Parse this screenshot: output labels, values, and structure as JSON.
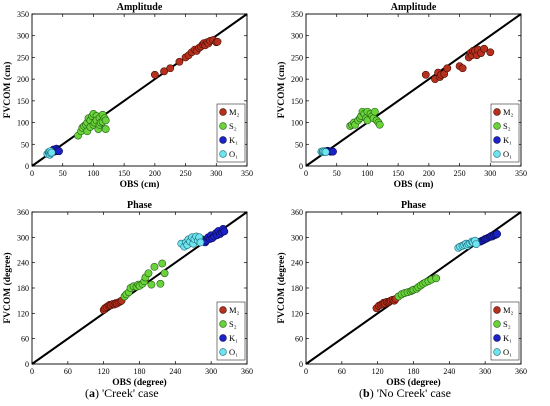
{
  "captions": [
    {
      "label": "a",
      "text": " 'Creek' case"
    },
    {
      "label": "b",
      "text": " 'No Creek' case"
    }
  ],
  "styles": {
    "M2": {
      "fill": "#b5311e",
      "stroke": "#4a0d05"
    },
    "S2": {
      "fill": "#6ad23a",
      "stroke": "#1f5e12"
    },
    "K1": {
      "fill": "#1c22c8",
      "stroke": "#070a50"
    },
    "O1": {
      "fill": "#6fe3ee",
      "stroke": "#1a6a78"
    }
  },
  "chart_data": [
    {
      "panel": "amplitude-creek",
      "type": "scatter",
      "title": "Amplitude",
      "xlabel": "OBS (cm)",
      "ylabel": "FVCOM (cm)",
      "xlim": [
        0,
        350
      ],
      "ylim": [
        0,
        350
      ],
      "xticks": [
        0,
        50,
        100,
        150,
        200,
        250,
        300,
        350
      ],
      "yticks": [
        0,
        50,
        100,
        150,
        200,
        250,
        300,
        350
      ],
      "legend": "right",
      "series": [
        {
          "name": "M₂",
          "key": "M2",
          "points": [
            [
              200,
              210
            ],
            [
              215,
              218
            ],
            [
              225,
              225
            ],
            [
              240,
              240
            ],
            [
              250,
              250
            ],
            [
              255,
              255
            ],
            [
              260,
              262
            ],
            [
              265,
              268
            ],
            [
              268,
              265
            ],
            [
              272,
              272
            ],
            [
              275,
              275
            ],
            [
              278,
              280
            ],
            [
              280,
              283
            ],
            [
              282,
              278
            ],
            [
              285,
              285
            ],
            [
              287,
              282
            ],
            [
              290,
              288
            ],
            [
              295,
              290
            ],
            [
              300,
              285
            ],
            [
              302,
              286
            ]
          ]
        },
        {
          "name": "S₂",
          "key": "S2",
          "points": [
            [
              75,
              70
            ],
            [
              80,
              80
            ],
            [
              82,
              88
            ],
            [
              85,
              92
            ],
            [
              88,
              95
            ],
            [
              90,
              100
            ],
            [
              90,
              80
            ],
            [
              92,
              110
            ],
            [
              95,
              105
            ],
            [
              95,
              90
            ],
            [
              98,
              115
            ],
            [
              100,
              95
            ],
            [
              100,
              120
            ],
            [
              102,
              100
            ],
            [
              105,
              115
            ],
            [
              105,
              105
            ],
            [
              108,
              85
            ],
            [
              110,
              110
            ],
            [
              110,
              95
            ],
            [
              112,
              100
            ],
            [
              115,
              102
            ],
            [
              115,
              118
            ],
            [
              118,
              110
            ],
            [
              120,
              105
            ],
            [
              120,
              85
            ]
          ]
        },
        {
          "name": "K₁",
          "key": "K1",
          "points": [
            [
              30,
              32
            ],
            [
              33,
              35
            ],
            [
              35,
              38
            ],
            [
              36,
              33
            ],
            [
              38,
              36
            ],
            [
              40,
              40
            ],
            [
              40,
              34
            ],
            [
              42,
              36
            ],
            [
              44,
              34
            ]
          ]
        },
        {
          "name": "O₁",
          "key": "O1",
          "points": [
            [
              25,
              28
            ],
            [
              27,
              32
            ],
            [
              28,
              30
            ],
            [
              29,
              26
            ],
            [
              30,
              34
            ],
            [
              31,
              29
            ],
            [
              32,
              31
            ]
          ]
        }
      ]
    },
    {
      "panel": "amplitude-nocreek",
      "type": "scatter",
      "title": "Amplitude",
      "xlabel": "OBS (cm)",
      "ylabel": "FVCOM (cm)",
      "xlim": [
        0,
        350
      ],
      "ylim": [
        0,
        350
      ],
      "xticks": [
        0,
        50,
        100,
        150,
        200,
        250,
        300,
        350
      ],
      "yticks": [
        0,
        50,
        100,
        150,
        200,
        250,
        300,
        350
      ],
      "legend": "right",
      "series": [
        {
          "name": "M₂",
          "key": "M2",
          "points": [
            [
              195,
              210
            ],
            [
              210,
              200
            ],
            [
              215,
              215
            ],
            [
              218,
              205
            ],
            [
              220,
              210
            ],
            [
              225,
              212
            ],
            [
              230,
              225
            ],
            [
              250,
              230
            ],
            [
              255,
              225
            ],
            [
              265,
              250
            ],
            [
              268,
              260
            ],
            [
              270,
              255
            ],
            [
              272,
              265
            ],
            [
              275,
              265
            ],
            [
              278,
              255
            ],
            [
              280,
              268
            ],
            [
              285,
              260
            ],
            [
              290,
              270
            ],
            [
              300,
              262
            ]
          ]
        },
        {
          "name": "S₂",
          "key": "S2",
          "points": [
            [
              72,
              92
            ],
            [
              75,
              95
            ],
            [
              78,
              100
            ],
            [
              80,
              95
            ],
            [
              85,
              105
            ],
            [
              88,
              110
            ],
            [
              90,
              115
            ],
            [
              92,
              125
            ],
            [
              95,
              120
            ],
            [
              98,
              110
            ],
            [
              100,
              105
            ],
            [
              100,
              125
            ],
            [
              105,
              120
            ],
            [
              108,
              115
            ],
            [
              110,
              110
            ],
            [
              112,
              125
            ],
            [
              115,
              105
            ],
            [
              118,
              100
            ],
            [
              120,
              95
            ]
          ]
        },
        {
          "name": "K₁",
          "key": "K1",
          "points": [
            [
              30,
              34
            ],
            [
              32,
              33
            ],
            [
              35,
              35
            ],
            [
              38,
              34
            ],
            [
              40,
              33
            ],
            [
              42,
              34
            ],
            [
              44,
              33
            ]
          ]
        },
        {
          "name": "O₁",
          "key": "O1",
          "points": [
            [
              25,
              33
            ],
            [
              27,
              32
            ],
            [
              28,
              34
            ],
            [
              30,
              33
            ],
            [
              32,
              32
            ]
          ]
        }
      ]
    },
    {
      "panel": "phase-creek",
      "type": "scatter",
      "title": "Phase",
      "xlabel": "OBS (degree)",
      "ylabel": "FVCOM (degree)",
      "xlim": [
        0,
        360
      ],
      "ylim": [
        0,
        360
      ],
      "xticks": [
        0,
        60,
        120,
        180,
        240,
        300,
        360
      ],
      "yticks": [
        0,
        60,
        120,
        180,
        240,
        300,
        360
      ],
      "legend": "right",
      "series": [
        {
          "name": "M₂",
          "key": "M2",
          "points": [
            [
              120,
              128
            ],
            [
              122,
              132
            ],
            [
              125,
              135
            ],
            [
              128,
              138
            ],
            [
              130,
              140
            ],
            [
              132,
              139
            ],
            [
              135,
              142
            ],
            [
              138,
              141
            ],
            [
              140,
              144
            ],
            [
              142,
              143
            ],
            [
              145,
              146
            ],
            [
              148,
              148
            ],
            [
              150,
              150
            ]
          ]
        },
        {
          "name": "S₂",
          "key": "S2",
          "points": [
            [
              155,
              160
            ],
            [
              158,
              165
            ],
            [
              162,
              170
            ],
            [
              165,
              180
            ],
            [
              170,
              184
            ],
            [
              175,
              183
            ],
            [
              178,
              188
            ],
            [
              180,
              185
            ],
            [
              185,
              190
            ],
            [
              188,
              196
            ],
            [
              190,
              205
            ],
            [
              195,
              215
            ],
            [
              200,
              188
            ],
            [
              205,
              230
            ],
            [
              215,
              190
            ],
            [
              218,
              238
            ],
            [
              222,
              215
            ]
          ]
        },
        {
          "name": "K₁",
          "key": "K1",
          "points": [
            [
              285,
              295
            ],
            [
              290,
              288
            ],
            [
              292,
              292
            ],
            [
              295,
              300
            ],
            [
              298,
              296
            ],
            [
              300,
              305
            ],
            [
              302,
              298
            ],
            [
              305,
              302
            ],
            [
              308,
              310
            ],
            [
              310,
              305
            ],
            [
              312,
              315
            ],
            [
              315,
              308
            ],
            [
              318,
              312
            ],
            [
              320,
              320
            ],
            [
              322,
              314
            ]
          ]
        },
        {
          "name": "O₁",
          "key": "O1",
          "points": [
            [
              250,
              285
            ],
            [
              255,
              278
            ],
            [
              258,
              288
            ],
            [
              260,
              282
            ],
            [
              262,
              295
            ],
            [
              265,
              290
            ],
            [
              268,
              300
            ],
            [
              270,
              285
            ],
            [
              272,
              296
            ],
            [
              275,
              302
            ],
            [
              278,
              292
            ],
            [
              280,
              300
            ],
            [
              282,
              288
            ]
          ]
        }
      ]
    },
    {
      "panel": "phase-nocreek",
      "type": "scatter",
      "title": "Phase",
      "xlabel": "OBS (degree)",
      "ylabel": "FVCOM (degree)",
      "xlim": [
        0,
        360
      ],
      "ylim": [
        0,
        360
      ],
      "xticks": [
        0,
        60,
        120,
        180,
        240,
        300,
        360
      ],
      "yticks": [
        0,
        60,
        120,
        180,
        240,
        300,
        360
      ],
      "legend": "right",
      "series": [
        {
          "name": "M₂",
          "key": "M2",
          "points": [
            [
              118,
              132
            ],
            [
              122,
              138
            ],
            [
              125,
              140
            ],
            [
              128,
              142
            ],
            [
              130,
              145
            ],
            [
              132,
              143
            ],
            [
              135,
              147
            ],
            [
              138,
              146
            ],
            [
              140,
              148
            ],
            [
              142,
              150
            ],
            [
              145,
              152
            ],
            [
              148,
              150
            ],
            [
              150,
              154
            ]
          ]
        },
        {
          "name": "S₂",
          "key": "S2",
          "points": [
            [
              155,
              160
            ],
            [
              160,
              165
            ],
            [
              165,
              168
            ],
            [
              170,
              170
            ],
            [
              175,
              172
            ],
            [
              178,
              174
            ],
            [
              180,
              176
            ],
            [
              185,
              178
            ],
            [
              188,
              182
            ],
            [
              192,
              186
            ],
            [
              196,
              190
            ],
            [
              200,
              193
            ],
            [
              205,
              196
            ],
            [
              210,
              200
            ],
            [
              218,
              203
            ]
          ]
        },
        {
          "name": "K₁",
          "key": "K1",
          "points": [
            [
              292,
              290
            ],
            [
              295,
              292
            ],
            [
              298,
              294
            ],
            [
              300,
              296
            ],
            [
              302,
              297
            ],
            [
              305,
              299
            ],
            [
              308,
              301
            ],
            [
              310,
              303
            ],
            [
              312,
              302
            ],
            [
              315,
              305
            ],
            [
              318,
              306
            ],
            [
              320,
              308
            ]
          ]
        },
        {
          "name": "O₁",
          "key": "O1",
          "points": [
            [
              255,
              275
            ],
            [
              258,
              278
            ],
            [
              262,
              280
            ],
            [
              265,
              282
            ],
            [
              268,
              285
            ],
            [
              270,
              280
            ],
            [
              272,
              284
            ],
            [
              275,
              286
            ],
            [
              278,
              290
            ],
            [
              280,
              288
            ],
            [
              283,
              292
            ],
            [
              285,
              284
            ]
          ]
        }
      ]
    }
  ]
}
